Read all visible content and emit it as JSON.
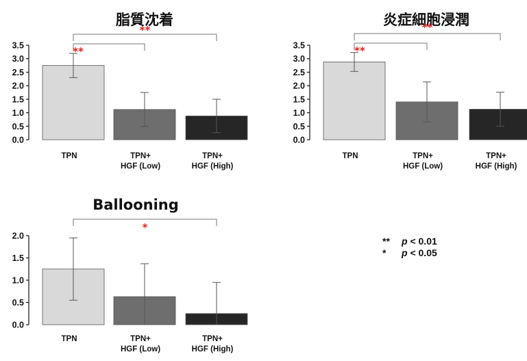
{
  "chart_data": [
    {
      "type": "bar",
      "title": "脂質沈着",
      "categories": [
        "TPN",
        "TPN+\nHGF (Low)",
        "TPN+\nHGF (High)"
      ],
      "values": [
        2.75,
        1.12,
        0.88
      ],
      "error": [
        0.45,
        0.63,
        0.62
      ],
      "bar_colors": [
        "#d9d9d9",
        "#6e6e6e",
        "#262626"
      ],
      "ylim": [
        0,
        3.5
      ],
      "yticks": [
        "0.0",
        "0.5",
        "1.0",
        "1.5",
        "2.0",
        "2.5",
        "3.0",
        "3.5"
      ],
      "significance": [
        {
          "from": 0,
          "to": 2,
          "label": "**"
        },
        {
          "from": 0,
          "to": 1,
          "label": "**"
        }
      ]
    },
    {
      "type": "bar",
      "title": "炎症細胞浸潤",
      "categories": [
        "TPN",
        "TPN+\nHGF (Low)",
        "TPN+\nHGF (High)"
      ],
      "values": [
        2.88,
        1.4,
        1.13
      ],
      "error": [
        0.35,
        0.74,
        0.63
      ],
      "bar_colors": [
        "#d9d9d9",
        "#6e6e6e",
        "#262626"
      ],
      "ylim": [
        0,
        3.5
      ],
      "yticks": [
        "0.0",
        "0.5",
        "1.0",
        "1.5",
        "2.0",
        "2.5",
        "3.0",
        "3.5"
      ],
      "significance": [
        {
          "from": 0,
          "to": 2,
          "label": "**"
        },
        {
          "from": 0,
          "to": 1,
          "label": "**"
        }
      ]
    },
    {
      "type": "bar",
      "title": "Ballooning",
      "categories": [
        "TPN",
        "TPN+\nHGF (Low)",
        "TPN+\nHGF (High)"
      ],
      "values": [
        1.25,
        0.63,
        0.25
      ],
      "error": [
        0.7,
        0.74,
        0.7
      ],
      "bar_colors": [
        "#d9d9d9",
        "#6e6e6e",
        "#262626"
      ],
      "ylim": [
        0,
        2.0
      ],
      "yticks": [
        "0.0",
        "0.5",
        "1.0",
        "1.5",
        "2.0"
      ],
      "significance": [
        {
          "from": 0,
          "to": 2,
          "label": "*"
        }
      ]
    }
  ],
  "legend": [
    {
      "stars": "**",
      "p": "p",
      "text": "< 0.01"
    },
    {
      "stars": "*",
      "p": "p",
      "text": "< 0.05"
    }
  ],
  "colors": {
    "significance": "#e0201b",
    "axis": "#111111"
  }
}
